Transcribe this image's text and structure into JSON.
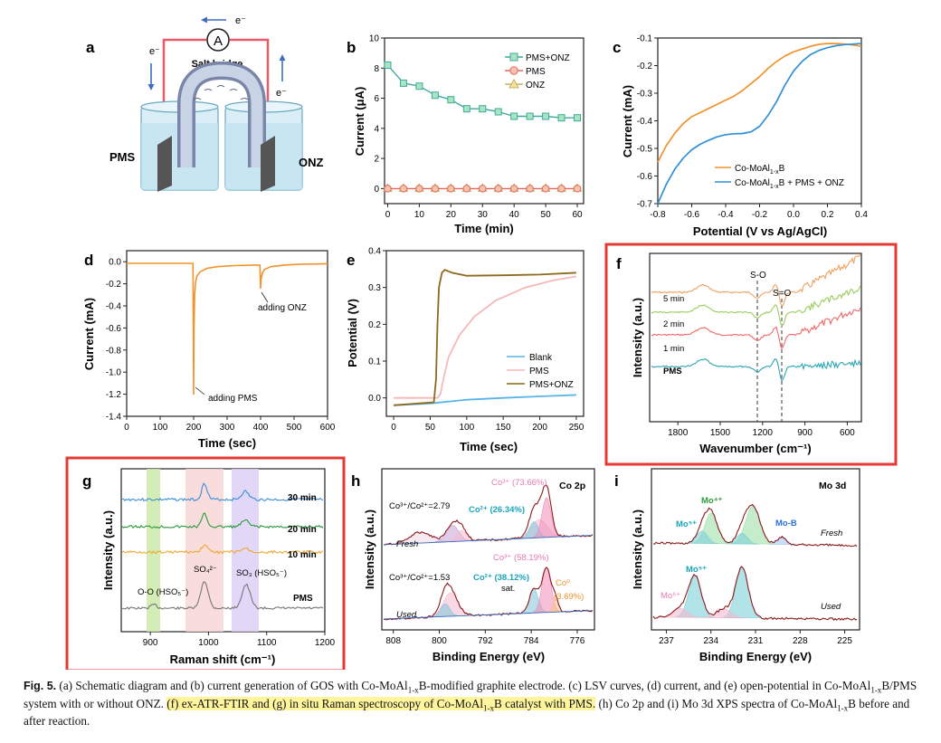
{
  "panels": {
    "a": {
      "label": "a",
      "electron": "e⁻",
      "ammeter": "A",
      "salt_bridge": "Salt bridge",
      "left": "PMS",
      "right": "ONZ"
    },
    "b": {
      "label": "b",
      "xlabel": "Time (min)",
      "ylabel": "Current (μA)",
      "legend": [
        "PMS+ONZ",
        "PMS",
        "ONZ"
      ],
      "colors": {
        "pms_onz": "#3fa9a0",
        "pms_onz_fill": "#a8e6c0",
        "pms": "#e06a5a",
        "pms_fill": "#f8c0b0",
        "onz": "#c8b060",
        "onz_fill": "#f0e4a0"
      }
    },
    "c": {
      "label": "c",
      "xlabel": "Potential (V vs Ag/AgCl)",
      "ylabel": "Current (mA)",
      "legend": [
        "Co-MoAl1-xB",
        "Co-MoAl1-xB + PMS + ONZ"
      ],
      "colors": {
        "s1": "#f0932b",
        "s2": "#2f8fd8"
      }
    },
    "d": {
      "label": "d",
      "xlabel": "Time (sec)",
      "ylabel": "Current (mA)",
      "ann1": "adding ONZ",
      "ann2": "adding PMS",
      "color": "#f0932b"
    },
    "e": {
      "label": "e",
      "xlabel": "Time (sec)",
      "ylabel": "Potential (V)",
      "legend": [
        "Blank",
        "PMS",
        "PMS+ONZ"
      ],
      "colors": {
        "blank": "#5ab4e8",
        "pms": "#f6b8b8",
        "pms_onz": "#8c6a1e"
      }
    },
    "f": {
      "label": "f",
      "xlabel": "Wavenumber (cm⁻¹)",
      "ylabel": "Intensity (a.u.)",
      "traces": [
        "5 min",
        "2 min",
        "1 min",
        "PMS"
      ],
      "so": "S-O",
      "s_eq_o": "S=O",
      "colors": {
        "t5": "#f0a060",
        "t2": "#9ccc5c",
        "t1": "#f06a6a",
        "pms": "#2aa6b0"
      }
    },
    "g": {
      "label": "g",
      "xlabel": "Raman shift (cm⁻¹)",
      "ylabel": "Intensity (a.u.)",
      "traces": [
        "30 min",
        "20 min",
        "10 min",
        "PMS"
      ],
      "ann_oo": "O-O (HSO₅⁻)",
      "ann_so4": "SO₄²⁻",
      "ann_so3": "SO₃ (HSO₅⁻)",
      "colors": {
        "t30": "#3a8fd8",
        "t20": "#2a9a3a",
        "t10": "#f0a830",
        "pms": "#777777",
        "band1": "#cde9a8",
        "band2": "#f8d6d6",
        "band3": "#ddd0f4"
      }
    },
    "h": {
      "label": "h",
      "title": "Co 2p",
      "xlabel": "Binding Energy (eV)",
      "ylabel": "Intensity (a.u.)",
      "fresh": "Fresh",
      "used": "Used",
      "ratio_fresh": "Co³⁺/Co²⁺=2.79",
      "ratio_used": "Co³⁺/Co²⁺=1.53",
      "co3_fresh": "Co³⁺ (73.66%)",
      "co2_fresh": "Co²⁺ (26.34%)",
      "co3_used": "Co³⁺ (58.19%)",
      "co2_used": "Co²⁺ (38.12%)",
      "sat": "sat.",
      "co0": "Co⁰",
      "co0_pct": "(3.69%)"
    },
    "i": {
      "label": "i",
      "title": "Mo 3d",
      "xlabel": "Binding Energy (eV)",
      "ylabel": "Intensity (a.u.)",
      "fresh": "Fresh",
      "used": "Used",
      "mo4": "Mo⁴⁺",
      "mo5_fresh": "Mo⁵⁺",
      "mob": "Mo-B",
      "mo5_used": "Mo⁵⁺",
      "mo6": "Mo⁶⁺"
    }
  },
  "chart_data": [
    {
      "panel": "b",
      "type": "line",
      "x": [
        0,
        5,
        10,
        15,
        20,
        25,
        30,
        35,
        40,
        45,
        50,
        55,
        60
      ],
      "series": [
        {
          "name": "PMS+ONZ",
          "values": [
            8.2,
            7.0,
            6.8,
            6.2,
            5.9,
            5.3,
            5.3,
            5.1,
            4.8,
            4.8,
            4.8,
            4.7,
            4.7
          ]
        },
        {
          "name": "PMS",
          "values": [
            0,
            0,
            0,
            0,
            0,
            0,
            0,
            0,
            0,
            0,
            0,
            0,
            0
          ]
        },
        {
          "name": "ONZ",
          "values": [
            0,
            0,
            0,
            0,
            0,
            0,
            0,
            0,
            0,
            0,
            0,
            0,
            0
          ]
        }
      ],
      "xlim": [
        -1,
        62
      ],
      "ylim": [
        -1,
        10
      ],
      "xticks": [
        0,
        10,
        20,
        30,
        40,
        50,
        60
      ],
      "yticks": [
        0,
        2,
        4,
        6,
        8,
        10
      ]
    },
    {
      "panel": "c",
      "type": "line",
      "series": [
        {
          "name": "Co-MoAl1-xB",
          "x": [
            -0.8,
            -0.75,
            -0.7,
            -0.65,
            -0.6,
            -0.55,
            -0.5,
            -0.45,
            -0.4,
            -0.35,
            -0.3,
            -0.25,
            -0.2,
            -0.15,
            -0.1,
            -0.05,
            0.0,
            0.05,
            0.1,
            0.15,
            0.2,
            0.25,
            0.3,
            0.35,
            0.4
          ],
          "values": [
            -0.55,
            -0.49,
            -0.445,
            -0.41,
            -0.385,
            -0.37,
            -0.355,
            -0.34,
            -0.325,
            -0.31,
            -0.29,
            -0.265,
            -0.24,
            -0.21,
            -0.185,
            -0.165,
            -0.15,
            -0.14,
            -0.13,
            -0.123,
            -0.12,
            -0.12,
            -0.122,
            -0.125,
            -0.13
          ]
        },
        {
          "name": "Co-MoAl1-xB + PMS + ONZ",
          "x": [
            -0.8,
            -0.75,
            -0.7,
            -0.65,
            -0.6,
            -0.55,
            -0.5,
            -0.45,
            -0.4,
            -0.35,
            -0.3,
            -0.25,
            -0.2,
            -0.15,
            -0.1,
            -0.05,
            0.0,
            0.05,
            0.1,
            0.15,
            0.2,
            0.25,
            0.3,
            0.35,
            0.4
          ],
          "values": [
            -0.7,
            -0.63,
            -0.575,
            -0.535,
            -0.505,
            -0.485,
            -0.47,
            -0.458,
            -0.45,
            -0.447,
            -0.446,
            -0.44,
            -0.42,
            -0.38,
            -0.33,
            -0.27,
            -0.22,
            -0.185,
            -0.16,
            -0.145,
            -0.135,
            -0.128,
            -0.124,
            -0.122,
            -0.12
          ]
        }
      ],
      "xlim": [
        -0.8,
        0.4
      ],
      "ylim": [
        -0.7,
        -0.1
      ],
      "xticks": [
        -0.8,
        -0.6,
        -0.4,
        -0.2,
        0.0,
        0.2,
        0.4
      ],
      "yticks": [
        -0.1,
        -0.2,
        -0.3,
        -0.4,
        -0.5,
        -0.6,
        -0.7
      ]
    },
    {
      "panel": "d",
      "type": "line",
      "series": [
        {
          "name": "current",
          "x": [
            0,
            198,
            200,
            201,
            203,
            206,
            210,
            220,
            240,
            270,
            320,
            380,
            398,
            400,
            402,
            406,
            412,
            430,
            470,
            520,
            600
          ],
          "values": [
            -0.015,
            -0.015,
            -1.2,
            -0.6,
            -0.3,
            -0.18,
            -0.13,
            -0.09,
            -0.06,
            -0.045,
            -0.035,
            -0.03,
            -0.03,
            -0.24,
            -0.15,
            -0.1,
            -0.07,
            -0.045,
            -0.03,
            -0.022,
            -0.018
          ]
        }
      ],
      "xlim": [
        0,
        600
      ],
      "ylim": [
        -1.4,
        0.1
      ],
      "xticks": [
        0,
        100,
        200,
        300,
        400,
        500,
        600
      ],
      "yticks": [
        0.0,
        -0.2,
        -0.4,
        -0.6,
        -0.8,
        -1.0,
        -1.2,
        -1.4
      ]
    },
    {
      "panel": "e",
      "type": "line",
      "series": [
        {
          "name": "Blank",
          "x": [
            0,
            50,
            100,
            150,
            200,
            250
          ],
          "values": [
            -0.02,
            -0.015,
            -0.005,
            0.0,
            0.004,
            0.008
          ]
        },
        {
          "name": "PMS",
          "x": [
            0,
            60,
            64,
            68,
            75,
            90,
            110,
            140,
            180,
            220,
            250
          ],
          "values": [
            0.0,
            0.0,
            0.01,
            0.05,
            0.11,
            0.17,
            0.22,
            0.265,
            0.3,
            0.32,
            0.33
          ]
        },
        {
          "name": "PMS+ONZ",
          "x": [
            0,
            55,
            58,
            60,
            62,
            66,
            70,
            80,
            100,
            150,
            200,
            250
          ],
          "values": [
            -0.02,
            -0.012,
            0.05,
            0.2,
            0.3,
            0.34,
            0.348,
            0.34,
            0.332,
            0.333,
            0.335,
            0.34
          ]
        }
      ],
      "xlim": [
        -10,
        260
      ],
      "ylim": [
        -0.05,
        0.4
      ],
      "xticks": [
        0,
        50,
        100,
        150,
        200,
        250
      ],
      "yticks": [
        0.0,
        0.1,
        0.2,
        0.3,
        0.4
      ]
    },
    {
      "panel": "f",
      "type": "line",
      "xaxis": "wavenumber, reversed",
      "xlim": [
        2000,
        500
      ],
      "xticks": [
        1800,
        1500,
        1200,
        900,
        600
      ],
      "dashed_lines": [
        1250,
        1060
      ]
    },
    {
      "panel": "g",
      "type": "line",
      "xlim": [
        850,
        1200
      ],
      "xticks": [
        900,
        1000,
        1100,
        1200
      ],
      "bands": [
        [
          870,
          885
        ],
        [
          945,
          1010
        ],
        [
          1030,
          1075
        ]
      ],
      "peaks": [
        977,
        1055
      ]
    },
    {
      "panel": "h",
      "type": "line",
      "xaxis": "binding energy, reversed",
      "xlim": [
        810,
        773
      ],
      "xticks": [
        808,
        800,
        792,
        784,
        776
      ]
    },
    {
      "panel": "i",
      "type": "line",
      "xaxis": "binding energy, reversed",
      "xlim": [
        238,
        224
      ],
      "xticks": [
        237,
        234,
        231,
        228,
        225
      ]
    }
  ],
  "caption": {
    "lead": "Fig. 5.",
    "t1": " (a) Schematic diagram and (b) current generation of GOS with Co-MoAl",
    "t2": "B-modified graphite electrode. (c) LSV curves, (d) current, and (e) open-potential in Co-MoAl",
    "t3": "B/PMS system with or without ONZ. ",
    "hl1": "(f) ex-ATR-FTIR and (g) in situ Raman spectroscopy of Co-MoAl",
    "hl2": "B catalyst with PMS.",
    "t4": " (h) Co 2p and (i) Mo 3d XPS spectra of Co-MoAl",
    "t5": "B before and after reaction.",
    "sub": "1-x"
  },
  "highlight_color": "#e53935"
}
